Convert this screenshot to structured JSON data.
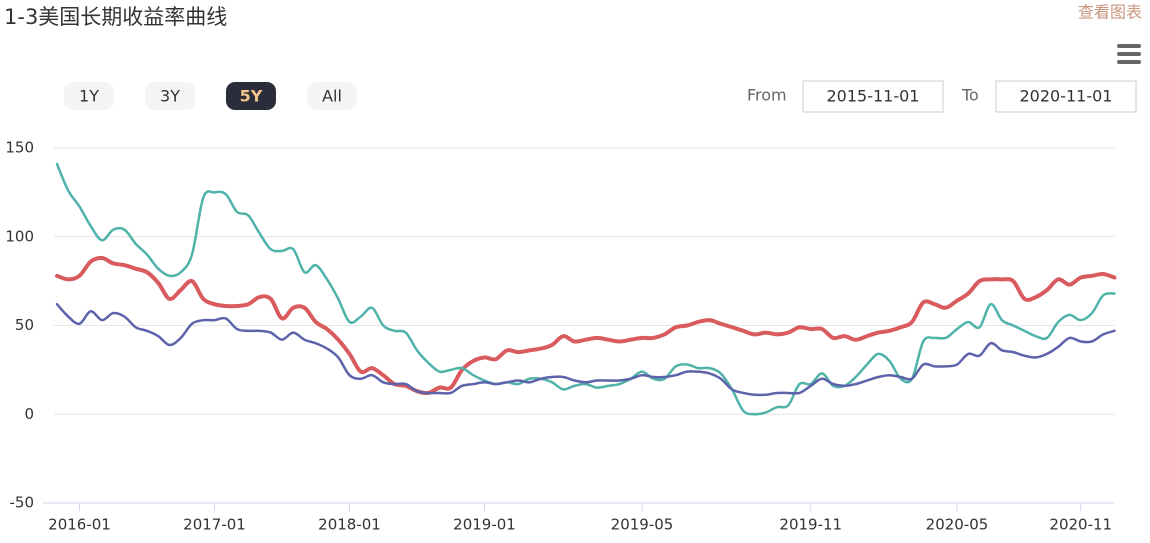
{
  "chart_data": {
    "type": "line",
    "title": "1-3美国长期收益率曲线",
    "categories": [
      null,
      null,
      "2016-01",
      null,
      null,
      null,
      null,
      null,
      null,
      null,
      null,
      null,
      null,
      null,
      "2017-01",
      null,
      null,
      null,
      null,
      null,
      null,
      null,
      null,
      null,
      null,
      null,
      "2018-01",
      null,
      null,
      null,
      null,
      null,
      null,
      null,
      null,
      null,
      null,
      null,
      "2019-01",
      null,
      null,
      null,
      null,
      null,
      null,
      null,
      null,
      null,
      null,
      null,
      null,
      null,
      "2019-05",
      null,
      null,
      null,
      null,
      null,
      null,
      null,
      null,
      null,
      null,
      null,
      null,
      null,
      null,
      "2019-11",
      null,
      null,
      null,
      null,
      null,
      null,
      null,
      null,
      null,
      null,
      null,
      null,
      "2020-05",
      null,
      null,
      null,
      null,
      null,
      null,
      null,
      null,
      null,
      null,
      "2020-11",
      null,
      null,
      null
    ],
    "series": [
      {
        "color": "#d95b5e",
        "values": [
          78,
          76,
          78,
          86,
          88,
          85,
          84,
          82,
          80,
          74,
          65,
          70,
          75,
          65,
          62,
          61,
          61,
          62,
          66,
          65,
          54,
          60,
          60,
          52,
          48,
          42,
          34,
          24,
          26,
          22,
          17,
          16,
          13,
          12,
          15,
          15,
          25,
          30,
          32,
          31,
          36,
          35,
          36,
          37,
          39,
          44,
          41,
          42,
          43,
          42,
          41,
          42,
          43,
          43,
          45,
          49,
          50,
          52,
          53,
          51,
          49,
          47,
          45,
          46,
          45,
          46,
          49,
          48,
          48,
          43,
          44,
          42,
          44,
          46,
          47,
          49,
          52,
          63,
          62,
          60,
          64,
          68,
          75,
          76,
          76,
          75,
          65,
          66,
          70,
          76,
          73,
          77,
          78,
          79,
          77
        ]
      },
      {
        "color": "#4fb3a9",
        "values": [
          141,
          126,
          117,
          106,
          98,
          104,
          104,
          96,
          90,
          82,
          78,
          80,
          90,
          122,
          125,
          124,
          114,
          112,
          102,
          93,
          92,
          93,
          80,
          84,
          76,
          65,
          52,
          55,
          60,
          50,
          47,
          46,
          36,
          29,
          24,
          25,
          26,
          22,
          19,
          17,
          18,
          17,
          20,
          20,
          18,
          14,
          16,
          17,
          15,
          16,
          17,
          20,
          24,
          20,
          20,
          27,
          28,
          26,
          26,
          23,
          14,
          2,
          0,
          1,
          4,
          5,
          17,
          17,
          23,
          16,
          16,
          21,
          28,
          34,
          30,
          20,
          20,
          41,
          43,
          43,
          48,
          52,
          49,
          62,
          53,
          50,
          47,
          44,
          43,
          52,
          56,
          53,
          57,
          67,
          68
        ]
      },
      {
        "color": "#5d63aa",
        "values": [
          62,
          55,
          51,
          58,
          53,
          57,
          55,
          49,
          47,
          44,
          39,
          43,
          51,
          53,
          53,
          54,
          48,
          47,
          47,
          46,
          42,
          46,
          42,
          40,
          37,
          32,
          22,
          20,
          22,
          18,
          17,
          17,
          13,
          12,
          12,
          12,
          16,
          17,
          18,
          17,
          18,
          19,
          18,
          20,
          21,
          21,
          19,
          18,
          19,
          19,
          19,
          20,
          22,
          21,
          21,
          22,
          24,
          24,
          23,
          20,
          14,
          12,
          11,
          11,
          12,
          12,
          12,
          16,
          20,
          17,
          16,
          17,
          19,
          21,
          22,
          21,
          20,
          28,
          27,
          27,
          28,
          34,
          33,
          40,
          36,
          35,
          33,
          32,
          34,
          38,
          43,
          41,
          41,
          45,
          47
        ]
      }
    ],
    "ylim": [
      -50,
      150
    ],
    "yticks": [
      -50,
      0,
      50,
      100,
      150
    ],
    "grid": true
  },
  "toolbar": {
    "view_chart": "查看图表"
  },
  "range_selector": {
    "buttons": [
      "1Y",
      "3Y",
      "5Y",
      "All"
    ],
    "selected": 2,
    "from_label": "From",
    "from": "2015-11-01",
    "to_label": "To",
    "to": "2020-11-01"
  }
}
